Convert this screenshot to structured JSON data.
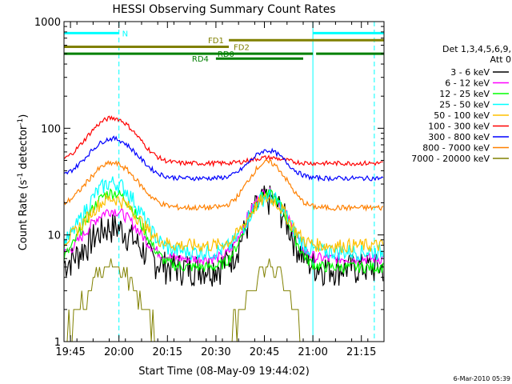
{
  "chart_data": {
    "type": "line",
    "title": "HESSI Observing Summary Count Rates",
    "xlabel": "Start Time (08-May-09 19:44:02)",
    "ylabel": "Count Rate (s",
    "ylabel_sup": "-1",
    "ylabel_mid": " detector",
    "ylabel_end": ")",
    "y_scale": "log",
    "ylim": [
      1,
      1000
    ],
    "xlim_minutes": [
      -1,
      98
    ],
    "x_ticks": [
      {
        "label": "19:45",
        "min": 1
      },
      {
        "label": "20:00",
        "min": 16
      },
      {
        "label": "20:15",
        "min": 31
      },
      {
        "label": "20:30",
        "min": 46
      },
      {
        "label": "20:45",
        "min": 61
      },
      {
        "label": "21:00",
        "min": 76
      },
      {
        "label": "21:15",
        "min": 91
      }
    ],
    "y_ticks": [
      {
        "label": "1",
        "value": 1
      },
      {
        "label": "10",
        "value": 10
      },
      {
        "label": "100",
        "value": 100
      },
      {
        "label": "1000",
        "value": 1000
      }
    ],
    "legend": {
      "header1": "Det 1,3,4,5,6,9,",
      "header2": "Att 0",
      "entries": [
        {
          "label": "3 - 6 keV",
          "color": "#000000"
        },
        {
          "label": "6 - 12 keV",
          "color": "#ff00ff"
        },
        {
          "label": "12 - 25 keV",
          "color": "#00ff00"
        },
        {
          "label": "25 - 50 keV",
          "color": "#00ffff"
        },
        {
          "label": "50 - 100 keV",
          "color": "#ffc000"
        },
        {
          "label": "100 - 300 keV",
          "color": "#ff0000"
        },
        {
          "label": "300 - 800 keV",
          "color": "#0000ff"
        },
        {
          "label": "800 - 7000 keV",
          "color": "#ff8000"
        },
        {
          "label": "7000 - 20000 keV",
          "color": "#808000"
        }
      ]
    },
    "flag_bars": [
      {
        "label": "N",
        "color": "#00ffff",
        "value": 780,
        "segments": [
          [
            -1,
            16
          ],
          [
            76,
            98
          ]
        ]
      },
      {
        "label": "FD1",
        "color": "#808000",
        "value": 670,
        "segments": [
          [
            50,
            98
          ]
        ]
      },
      {
        "label": "FD2",
        "color": "#808000",
        "value": 580,
        "segments": [
          [
            -1,
            50
          ]
        ]
      },
      {
        "label": "RD0",
        "color": "#008000",
        "value": 500,
        "segments": [
          [
            -1,
            76
          ],
          [
            77,
            98
          ]
        ]
      },
      {
        "label": "RD4",
        "color": "#008000",
        "value": 450,
        "segments": [
          [
            46,
            73
          ]
        ]
      }
    ],
    "saa_lines_min": [
      -1,
      76
    ],
    "night_lines_min": [
      16,
      95
    ],
    "series": [
      {
        "name": "3 - 6 keV",
        "color": "#000000",
        "min": 5,
        "peak1": 12,
        "peak2": 22,
        "noise": 0.35
      },
      {
        "name": "6 - 12 keV",
        "color": "#ff00ff",
        "min": 6,
        "peak1": 17,
        "peak2": 25,
        "noise": 0.12
      },
      {
        "name": "12 - 25 keV",
        "color": "#00ff00",
        "min": 5,
        "peak1": 25,
        "peak2": 24,
        "noise": 0.12
      },
      {
        "name": "25 - 50 keV",
        "color": "#00ffff",
        "min": 7,
        "peak1": 31,
        "peak2": 23,
        "noise": 0.18
      },
      {
        "name": "50 - 100 keV",
        "color": "#ffc000",
        "min": 8,
        "peak1": 22,
        "peak2": 22,
        "noise": 0.15
      },
      {
        "name": "100 - 300 keV",
        "color": "#ff0000",
        "min": 47,
        "peak1": 125,
        "peak2": 53,
        "noise": 0.05
      },
      {
        "name": "300 - 800 keV",
        "color": "#0000ff",
        "min": 34,
        "peak1": 80,
        "peak2": 62,
        "noise": 0.05
      },
      {
        "name": "800 - 7000 keV",
        "color": "#ff8000",
        "min": 18,
        "peak1": 47,
        "peak2": 48,
        "noise": 0.06
      },
      {
        "name": "7000 - 20000 keV",
        "color": "#808000",
        "min": 1,
        "peak1": 5,
        "peak2": 5,
        "noise": 0.0
      }
    ]
  },
  "footer_date": "6-Mar-2010 05:39"
}
